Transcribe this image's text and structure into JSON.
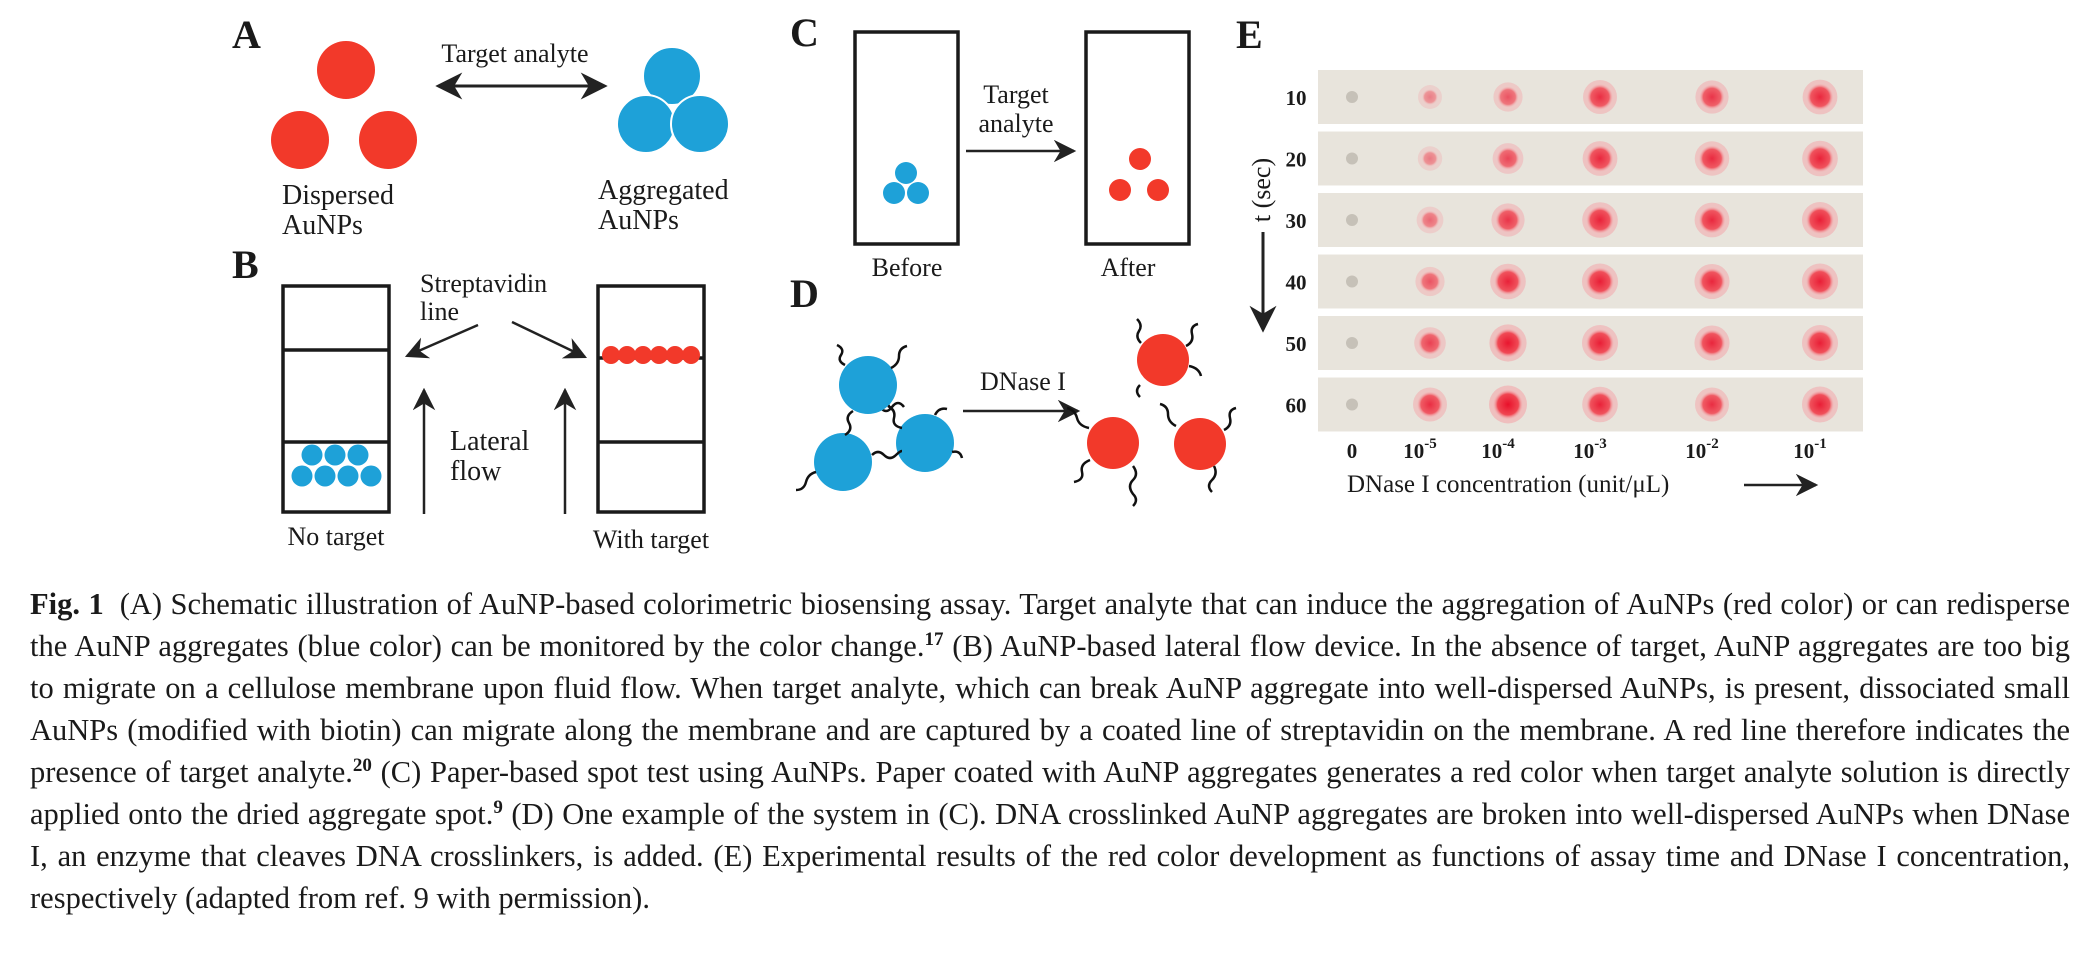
{
  "figure": {
    "panels": [
      "A",
      "B",
      "C",
      "D",
      "E"
    ],
    "panel_a": {
      "arrow_label": "Target analyte",
      "dispersed_label_1": "Dispersed",
      "dispersed_label_2": "AuNPs",
      "aggregated_label_1": "Aggregated",
      "aggregated_label_2": "AuNPs"
    },
    "panel_b": {
      "line_label_1": "Streptavidin",
      "line_label_2": "line",
      "flow_label_1": "Lateral",
      "flow_label_2": "flow",
      "left_caption": "No target",
      "right_caption": "With target"
    },
    "panel_c": {
      "arrow_label_1": "Target",
      "arrow_label_2": "analyte",
      "left_caption": "Before",
      "right_caption": "After"
    },
    "panel_d": {
      "arrow_label": "DNase I"
    },
    "panel_e": {
      "y_axis_label": "t (sec)",
      "row_labels": [
        "10",
        "20",
        "30",
        "40",
        "50",
        "60"
      ],
      "col_labels": [
        {
          "base": "0",
          "exp": ""
        },
        {
          "base": "10",
          "exp": "-5"
        },
        {
          "base": "10",
          "exp": "-4"
        },
        {
          "base": "10",
          "exp": "-3"
        },
        {
          "base": "10",
          "exp": "-2"
        },
        {
          "base": "10",
          "exp": "-1"
        }
      ],
      "x_axis_label": "DNase I concentration (unit/μL)",
      "spot_intensity": [
        [
          0.0,
          0.12,
          0.45,
          0.75,
          0.7,
          0.8
        ],
        [
          0.0,
          0.15,
          0.55,
          0.8,
          0.78,
          0.85
        ],
        [
          0.0,
          0.3,
          0.7,
          0.85,
          0.8,
          0.88
        ],
        [
          0.0,
          0.45,
          0.85,
          0.88,
          0.82,
          0.88
        ],
        [
          0.0,
          0.6,
          0.95,
          0.88,
          0.82,
          0.88
        ],
        [
          0.0,
          0.75,
          1.0,
          0.85,
          0.75,
          0.88
        ]
      ]
    },
    "colors": {
      "red": "#f2392a",
      "blue": "#1ea1d8",
      "strip_bg": "#e8e4dc"
    }
  },
  "caption": {
    "label": "Fig. 1",
    "p1": "(A) Schematic illustration of AuNP-based colorimetric biosensing assay. Target analyte that can induce the aggregation of AuNPs (red color) or can redisperse the AuNP aggregates (blue color) can be monitored by the color change.",
    "r1": "17",
    "p2": " (B) AuNP-based lateral flow device. In the absence of target, AuNP aggregates are too big to migrate on a cellulose membrane upon fluid flow. When target analyte, which can break AuNP aggregate into well-dispersed AuNPs, is present, dissociated small AuNPs (modified with biotin) can migrate along the membrane and are captured by a coated line of streptavidin on the membrane. A red line therefore indicates the presence of target analyte.",
    "r2": "20",
    "p3": " (C) Paper-based spot test using AuNPs. Paper coated with AuNP aggregates generates a red color when target analyte solution is directly applied onto the dried aggregate spot.",
    "r3": "9",
    "p4": " (D) One example of the system in (C). DNA crosslinked AuNP aggregates are broken into well-dispersed AuNPs when DNase I, an enzyme that cleaves DNA crosslinkers, is added. (E) Experimental results of the red color development as functions of assay time and DNase I concentration, respectively (adapted from ref. 9 with permission)."
  }
}
